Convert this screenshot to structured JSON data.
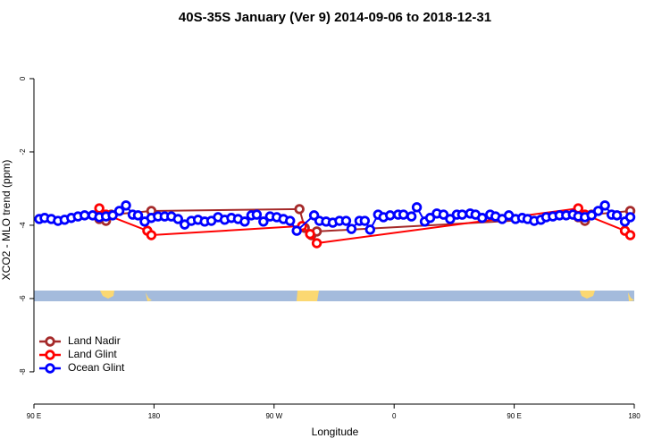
{
  "chart_data": {
    "type": "line",
    "title": "40S-35S January (Ver 9)   2014-09-06 to 2018-12-31",
    "x_label": "Longitude",
    "y_label": "XCO2 - MLO trend (ppm)",
    "xlim": [
      90,
      540
    ],
    "ylim": [
      -8.88,
      1.17
    ],
    "xticks": [
      {
        "value": 90,
        "label": "90 E"
      },
      180,
      {
        "value": 270,
        "label": "90 W"
      },
      {
        "value": 360,
        "label": "0"
      },
      {
        "value": 450,
        "label": "90 E"
      },
      {
        "value": 540,
        "label": "180"
      }
    ],
    "yticks": [
      0,
      -2,
      -4,
      -6,
      -8
    ],
    "legend": "bottom-left",
    "series": [
      {
        "name": "Land Nadir",
        "color": "#a52a2a",
        "x": [
          139,
          144,
          148,
          178,
          289,
          293,
          298,
          302,
          498,
          503,
          508,
          537
        ],
        "values": [
          -3.83,
          -3.88,
          -3.71,
          -3.61,
          -3.56,
          -4.07,
          -4.27,
          -4.17,
          -3.78,
          -3.88,
          -3.71,
          -3.61
        ]
      },
      {
        "name": "Land Glint",
        "color": "#ff0000",
        "x": [
          139,
          144,
          175,
          178,
          291,
          297,
          302,
          498,
          503,
          533,
          537
        ],
        "values": [
          -3.54,
          -3.71,
          -4.15,
          -4.27,
          -4.02,
          -4.24,
          -4.49,
          -3.54,
          -3.71,
          -4.15,
          -4.27
        ]
      },
      {
        "name": "Ocean Glint",
        "color": "#0000ff",
        "x": [
          94,
          98,
          103,
          108,
          113,
          118,
          123,
          128,
          134,
          139,
          144,
          149,
          154,
          159,
          164,
          168,
          173,
          178,
          183,
          188,
          193,
          198,
          203,
          208,
          213,
          218,
          223,
          228,
          233,
          238,
          243,
          248,
          253,
          257,
          262,
          267,
          272,
          277,
          282,
          287,
          300,
          304,
          309,
          314,
          319,
          324,
          328,
          334,
          338,
          342,
          348,
          352,
          357,
          363,
          367,
          373,
          377,
          383,
          387,
          392,
          397,
          402,
          407,
          411,
          417,
          421,
          426,
          432,
          436,
          441,
          446,
          451,
          456,
          460,
          465,
          470,
          474,
          479,
          484,
          489,
          494,
          498,
          503,
          508,
          513,
          518,
          523,
          527,
          533,
          537
        ],
        "values": [
          -3.83,
          -3.8,
          -3.83,
          -3.88,
          -3.85,
          -3.8,
          -3.76,
          -3.73,
          -3.73,
          -3.78,
          -3.76,
          -3.73,
          -3.61,
          -3.46,
          -3.71,
          -3.73,
          -3.9,
          -3.8,
          -3.76,
          -3.76,
          -3.76,
          -3.83,
          -3.98,
          -3.88,
          -3.85,
          -3.9,
          -3.88,
          -3.78,
          -3.85,
          -3.8,
          -3.83,
          -3.9,
          -3.73,
          -3.71,
          -3.9,
          -3.76,
          -3.78,
          -3.83,
          -3.88,
          -4.15,
          -3.73,
          -3.88,
          -3.9,
          -3.93,
          -3.88,
          -3.88,
          -4.1,
          -3.88,
          -3.88,
          -4.12,
          -3.71,
          -3.78,
          -3.73,
          -3.71,
          -3.71,
          -3.76,
          -3.51,
          -3.9,
          -3.8,
          -3.68,
          -3.71,
          -3.83,
          -3.71,
          -3.71,
          -3.68,
          -3.71,
          -3.8,
          -3.71,
          -3.76,
          -3.83,
          -3.73,
          -3.83,
          -3.8,
          -3.83,
          -3.88,
          -3.85,
          -3.78,
          -3.76,
          -3.73,
          -3.73,
          -3.71,
          -3.76,
          -3.78,
          -3.73,
          -3.61,
          -3.46,
          -3.71,
          -3.73,
          -3.9,
          -3.78
        ]
      }
    ]
  }
}
